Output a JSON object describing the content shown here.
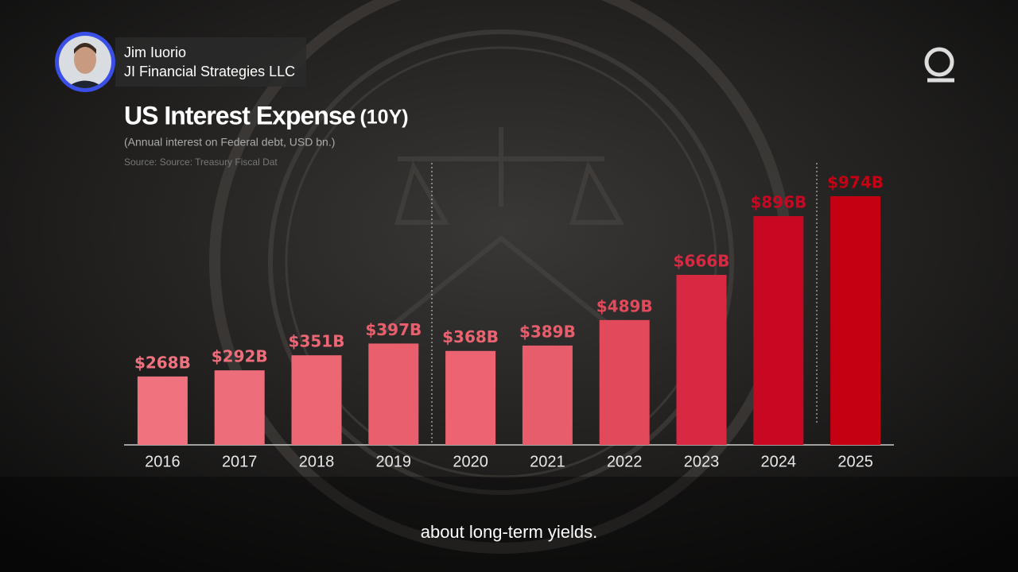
{
  "speaker": {
    "name": "Jim Iuorio",
    "affiliation": "JI Financial Strategies LLC"
  },
  "chart_data": {
    "type": "bar",
    "title": "US Interest Expense",
    "title_note": "(10Y)",
    "subtitle": "(Annual interest on Federal debt, USD bn.)",
    "source": "Source: Source: Treasury Fiscal Dat",
    "categories": [
      "2016",
      "2017",
      "2018",
      "2019",
      "2020",
      "2021",
      "2022",
      "2023",
      "2024",
      "2025"
    ],
    "values": [
      268,
      292,
      351,
      397,
      368,
      389,
      489,
      666,
      896,
      974
    ],
    "value_labels": [
      "$268B",
      "$292B",
      "$351B",
      "$397B",
      "$368B",
      "$389B",
      "$489B",
      "$666B",
      "$896B",
      "$974B"
    ],
    "colors": [
      "#f0727f",
      "#ee6d7a",
      "#ec6674",
      "#e95f6d",
      "#ec6471",
      "#e85d6b",
      "#e24a5c",
      "#d72a42",
      "#c80822",
      "#c40012"
    ]
  },
  "caption": "about long-term yields."
}
